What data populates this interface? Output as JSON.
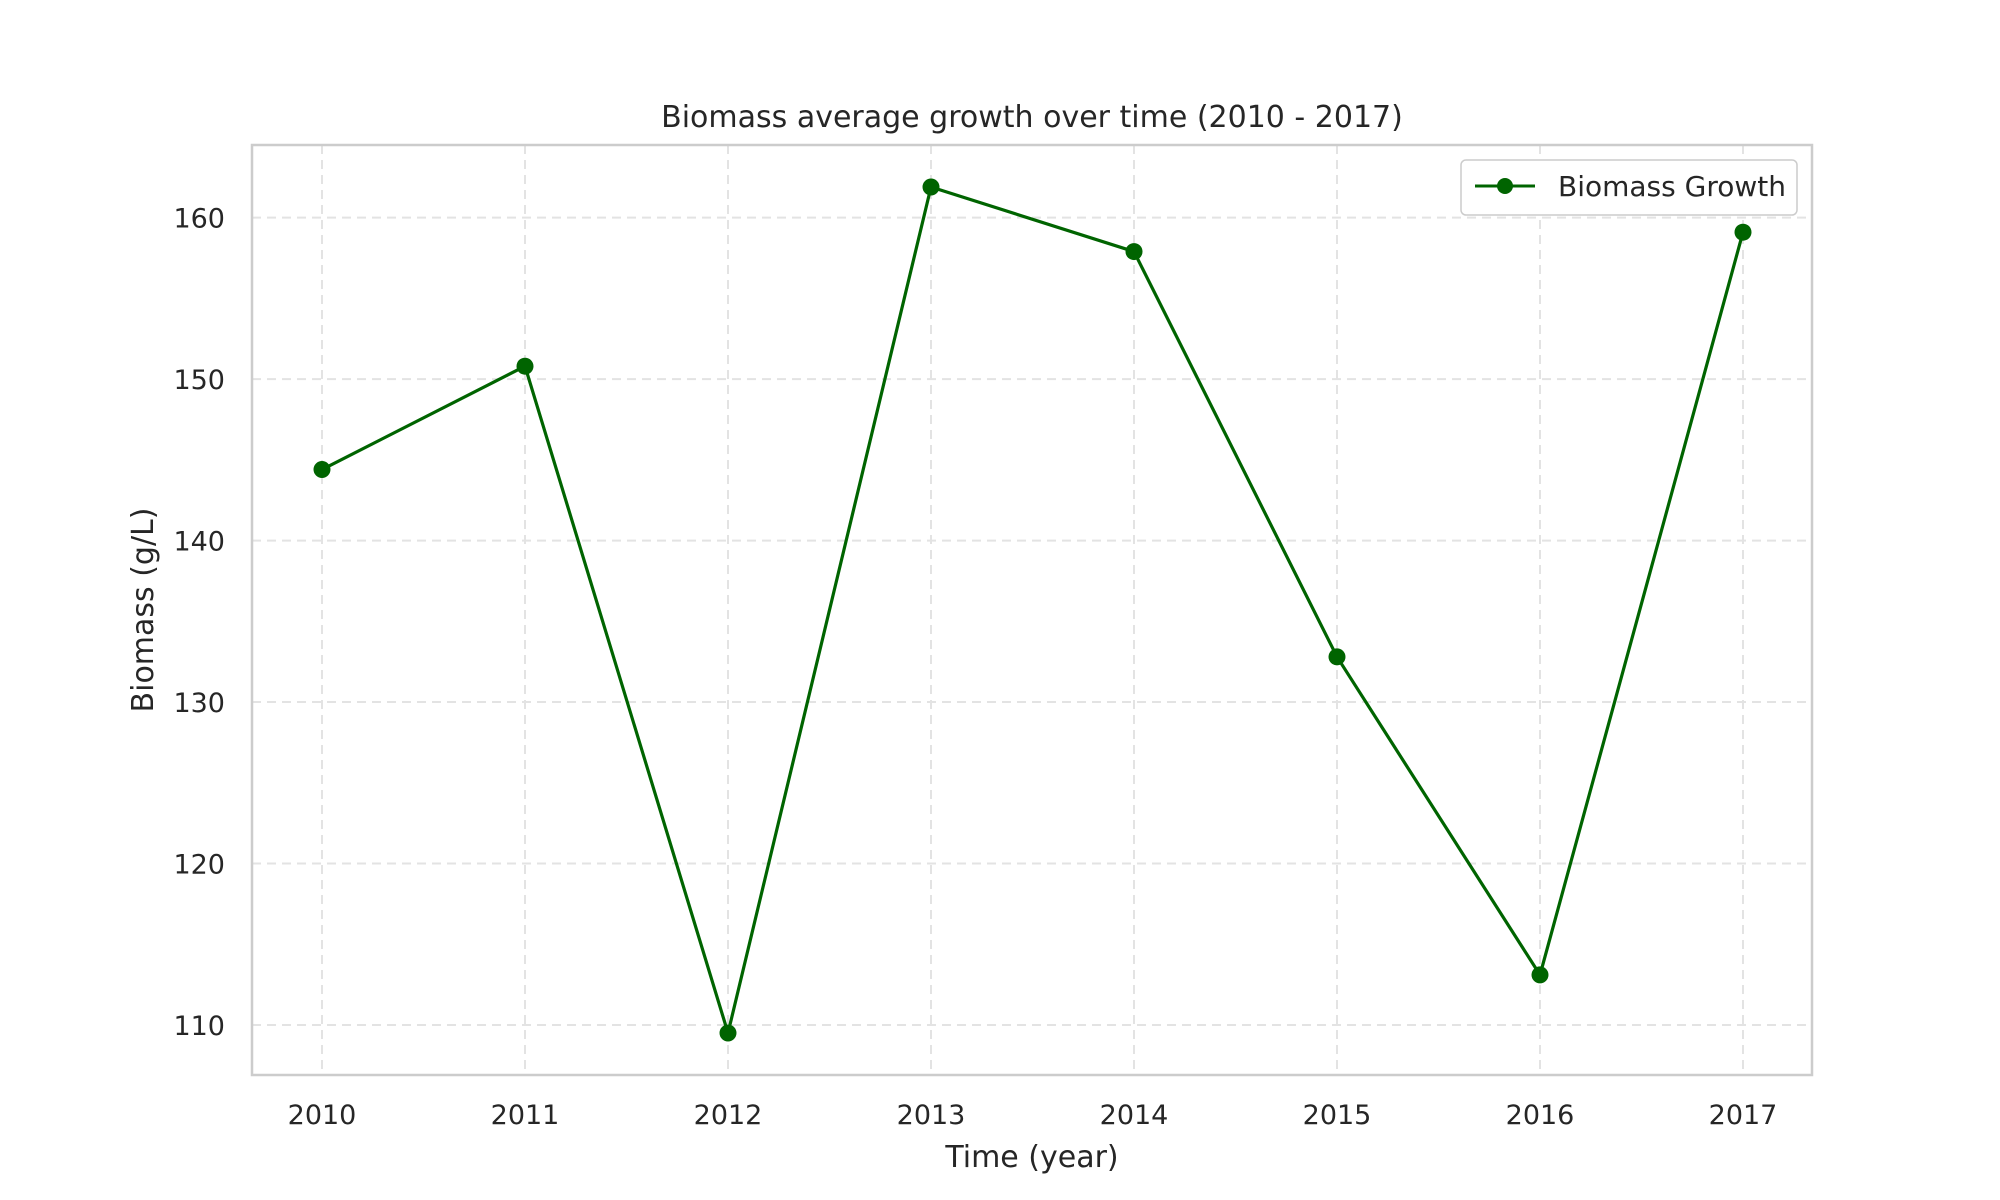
{
  "chart_data": {
    "type": "line",
    "title": "Biomass average growth over time (2010 - 2017)",
    "xlabel": "Time (year)",
    "ylabel": "Biomass (g/L)",
    "x": [
      "2010",
      "2011",
      "2012",
      "2013",
      "2014",
      "2015",
      "2016",
      "2017"
    ],
    "series": [
      {
        "name": "Biomass Growth",
        "values": [
          144.4,
          150.8,
          109.5,
          161.9,
          157.9,
          132.8,
          113.1,
          159.1
        ],
        "color": "#006400",
        "marker": "circle"
      }
    ],
    "ylim": [
      106.9,
      164.5
    ],
    "y_ticks": [
      110,
      120,
      130,
      140,
      150,
      160
    ],
    "grid": true,
    "grid_style": "dashed",
    "legend_position": "top-right"
  }
}
